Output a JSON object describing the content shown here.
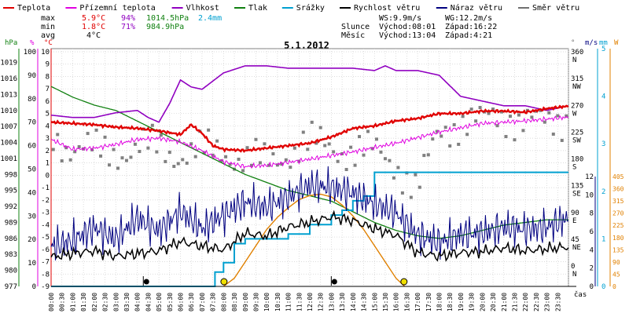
{
  "title": "5.1.2012",
  "legend": [
    {
      "label": "Teplota",
      "color": "#e00000"
    },
    {
      "label": "Přízemní teplota",
      "color": "#e000e0"
    },
    {
      "label": "Vlhkost",
      "color": "#9000c0"
    },
    {
      "label": "Tlak",
      "color": "#108010"
    },
    {
      "label": "Srážky",
      "color": "#00a0d0"
    },
    {
      "label": "Rychlost větru",
      "color": "#000000"
    },
    {
      "label": "Náraz větru",
      "color": "#000080"
    },
    {
      "label": "Směr větru",
      "color": "#707070"
    }
  ],
  "stats": {
    "max_label": "max",
    "max_temp": "5.9°C",
    "max_hum": "94%",
    "max_press": "1014.5hPa",
    "max_rain": "2.4mm",
    "min_label": "min",
    "min_temp": "1.8°C",
    "min_hum": "71%",
    "min_press": "984.9hPa",
    "avg_label": "avg",
    "avg_temp": "4°C"
  },
  "wind_info": {
    "ws": "WS:9.9m/s",
    "wg": "WG:12.2m/s",
    "sun_label": "Slunce",
    "sun_rise": "Východ:08:01",
    "sun_set": "Západ:16:22",
    "moon_label": "Měsíc",
    "moon_rise": "Východ:13:04",
    "moon_set": "Západ:4:21"
  },
  "axis_units": {
    "press": "hPa",
    "hum": "%",
    "temp": "°C",
    "dir": "°",
    "wind": "m/s",
    "rain": "mm",
    "sun": "W",
    "time": "čas"
  },
  "chart_data": {
    "type": "line",
    "x_unit": "time of day",
    "x_ticks": [
      "00:00",
      "00:30",
      "01:00",
      "01:30",
      "02:00",
      "02:30",
      "03:00",
      "03:30",
      "04:00",
      "04:30",
      "05:00",
      "05:30",
      "06:00",
      "06:30",
      "07:00",
      "07:30",
      "08:00",
      "08:30",
      "09:00",
      "09:30",
      "10:00",
      "10:30",
      "11:00",
      "11:30",
      "12:00",
      "12:30",
      "13:00",
      "13:30",
      "14:00",
      "14:30",
      "15:00",
      "15:30",
      "16:00",
      "16:30",
      "17:00",
      "17:30",
      "18:00",
      "18:30",
      "19:00",
      "19:30",
      "20:00",
      "20:30",
      "21:00",
      "21:30",
      "22:00",
      "22:30",
      "23:00",
      "23:30"
    ],
    "y_axes": {
      "pressure_hPa": {
        "ticks": [
          977,
          980,
          983,
          986,
          989,
          992,
          995,
          998,
          1001,
          1004,
          1007,
          1010,
          1013,
          1016,
          1019
        ],
        "range": [
          977,
          1021
        ]
      },
      "humidity_pct": {
        "ticks": [
          0,
          10,
          20,
          30,
          40,
          50,
          60,
          70,
          80,
          90,
          100
        ],
        "range": [
          0,
          100
        ]
      },
      "temperature_C": {
        "ticks": [
          -9,
          -8,
          -7,
          -6,
          -5,
          -4,
          -3,
          -2,
          -1,
          0,
          1,
          2,
          3,
          4,
          5,
          6,
          7,
          8,
          9,
          10
        ],
        "range": [
          -9,
          10
        ]
      },
      "wind_dir_deg": {
        "ticks": [
          0,
          45,
          90,
          135,
          180,
          225,
          270,
          315,
          360
        ],
        "labels": [
          "N",
          "NE",
          "E",
          "SE",
          "S",
          "SW",
          "W",
          "NW",
          "N"
        ]
      },
      "wind_speed_ms": {
        "ticks": [
          0,
          2,
          4,
          6,
          8,
          10,
          12
        ]
      },
      "rain_mm": {
        "ticks": [
          0,
          1,
          2,
          3,
          4,
          5
        ]
      },
      "solar_W": {
        "ticks": [
          0,
          45,
          90,
          135,
          180,
          225,
          270,
          315,
          360,
          405
        ]
      }
    },
    "series": [
      {
        "name": "Teplota",
        "unit": "°C",
        "x": [
          0,
          2,
          3,
          4,
          5,
          6,
          6.5,
          7,
          7.5,
          8,
          9,
          10,
          12,
          13,
          14,
          15,
          16,
          17,
          18,
          19,
          20,
          21,
          22,
          23,
          24
        ],
        "values": [
          4.3,
          4.1,
          3.9,
          3.8,
          3.6,
          3.3,
          4.1,
          3.4,
          2.4,
          2.1,
          2.0,
          2.2,
          2.6,
          3.1,
          3.8,
          4.0,
          4.4,
          4.6,
          5.0,
          5.0,
          5.2,
          5.2,
          5.1,
          5.4,
          5.6
        ]
      },
      {
        "name": "Přízemní teplota",
        "unit": "°C",
        "x": [
          0,
          1,
          2,
          3,
          4,
          5,
          6,
          7,
          8,
          9,
          10,
          12,
          14,
          16,
          18,
          20,
          22,
          24
        ],
        "values": [
          2.9,
          2.1,
          2.2,
          2.5,
          2.9,
          3.0,
          2.7,
          2.0,
          1.1,
          0.7,
          0.8,
          1.3,
          1.9,
          2.6,
          3.5,
          4.2,
          4.4,
          4.7
        ]
      },
      {
        "name": "Vlhkost",
        "unit": "%",
        "x": [
          0,
          1,
          2,
          3,
          4,
          4.5,
          5,
          5.5,
          6,
          6.5,
          7,
          8,
          9,
          10,
          11,
          12,
          13,
          14,
          15,
          15.5,
          16,
          17,
          18,
          19,
          20,
          21,
          22,
          23,
          24
        ],
        "values": [
          73,
          72,
          72,
          74,
          75,
          72,
          70,
          78,
          88,
          85,
          84,
          91,
          94,
          94,
          93,
          93,
          93,
          93,
          92,
          94,
          92,
          92,
          90,
          81,
          79,
          77,
          77,
          75,
          77
        ]
      },
      {
        "name": "Tlak",
        "unit": "hPa",
        "x": [
          0,
          1,
          2,
          3,
          4,
          5,
          6,
          7,
          8,
          9,
          10,
          11,
          12,
          13,
          14,
          15,
          16,
          17,
          18,
          19,
          20,
          21,
          22,
          23,
          24
        ],
        "values": [
          1014.5,
          1012.5,
          1011,
          1010,
          1008,
          1006,
          1004,
          1002,
          1000,
          998,
          996.5,
          995,
          994,
          993,
          991,
          989,
          987.5,
          986.5,
          986,
          986.5,
          987.5,
          988.5,
          989,
          989.5,
          989.5
        ]
      },
      {
        "name": "Srážky",
        "unit": "mm",
        "x": [
          0,
          7.2,
          7.6,
          8,
          8.5,
          9,
          10,
          11,
          12,
          12.5,
          13,
          13.5,
          14,
          14.5,
          15,
          15.5,
          16,
          24
        ],
        "values": [
          0,
          0,
          0.3,
          0.5,
          0.9,
          1.0,
          1.0,
          1.1,
          1.3,
          1.3,
          1.5,
          1.6,
          1.8,
          1.9,
          2.4,
          2.4,
          2.4,
          2.4
        ]
      },
      {
        "name": "Rychlost větru",
        "unit": "m/s",
        "x": [
          0,
          1,
          2,
          3,
          4,
          5,
          6,
          7,
          8,
          9,
          10,
          11,
          12,
          13,
          14,
          15,
          16,
          17,
          18,
          19,
          20,
          21,
          22,
          23,
          24
        ],
        "values": [
          3.2,
          3.6,
          3.9,
          3.3,
          3.6,
          3.9,
          4.9,
          4.4,
          4.0,
          5.8,
          5.5,
          6.5,
          7.0,
          7.6,
          7.2,
          6.3,
          5.6,
          3.7,
          3.3,
          3.7,
          3.8,
          4.2,
          3.9,
          4.1,
          4.3
        ]
      },
      {
        "name": "Náraz větru",
        "unit": "m/s",
        "x": [
          0,
          1,
          2,
          3,
          4,
          5,
          6,
          7,
          8,
          9,
          10,
          11,
          12,
          13,
          14,
          15,
          16,
          17,
          18,
          19,
          20,
          21,
          22,
          23,
          24
        ],
        "values": [
          4.3,
          5.0,
          6.4,
          5.2,
          7.4,
          6.1,
          8.2,
          6.3,
          7.8,
          9.2,
          8.6,
          9.8,
          11.0,
          10.8,
          10.2,
          9.0,
          8.0,
          5.6,
          4.8,
          5.7,
          5.8,
          6.5,
          6.2,
          6.5,
          7.4
        ]
      },
      {
        "name": "Směr větru",
        "unit": "°",
        "x": [
          0,
          1,
          2,
          3,
          4,
          5,
          6,
          7,
          8,
          9,
          10,
          11,
          12,
          13,
          14,
          15,
          16,
          17,
          18,
          19,
          20,
          21,
          22,
          23,
          24
        ],
        "values": [
          228,
          205,
          196,
          200,
          200,
          205,
          195,
          195,
          200,
          185,
          175,
          200,
          210,
          205,
          200,
          195,
          180,
          130,
          230,
          250,
          245,
          260,
          250,
          240,
          260
        ]
      },
      {
        "name": "Solar",
        "unit": "W",
        "x": [
          8,
          8.5,
          9,
          9.5,
          10,
          10.5,
          11,
          11.5,
          12,
          12.5,
          13,
          13.5,
          14,
          14.5,
          15,
          15.5,
          16,
          16.4
        ],
        "values": [
          0,
          30,
          90,
          150,
          210,
          255,
          290,
          320,
          335,
          340,
          330,
          300,
          260,
          210,
          150,
          90,
          30,
          0
        ]
      }
    ],
    "annotations": [
      "sunrise 08:01",
      "sunset 16:22",
      "moonrise 13:04",
      "moonset 04:21"
    ]
  }
}
